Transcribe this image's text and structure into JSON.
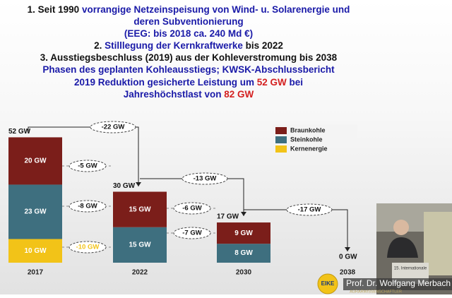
{
  "heading": [
    [
      {
        "text": "1. Seit 1990 ",
        "color": "#111111"
      },
      {
        "text": "vorrangige Netzeinspeisung von Wind- u. Solarenergie und",
        "color": "#1a1aa8"
      }
    ],
    [
      {
        "text": "deren Subventionierung",
        "color": "#1a1aa8"
      }
    ],
    [
      {
        "text": "(EEG:  bis 2018 ca. 240  Md €)",
        "color": "#1a1aa8"
      }
    ],
    [
      {
        "text": "2. ",
        "color": "#111111"
      },
      {
        "text": "Stilllegung der Kernkraftwerke",
        "color": "#1a1aa8"
      },
      {
        "text": " bis 2022",
        "color": "#111111"
      }
    ],
    [
      {
        "text": "3. Ausstiegsbeschluss (2019) aus der Kohleverstromung bis 2038",
        "color": "#111111"
      }
    ],
    [
      {
        "text": "Phasen des geplanten Kohleausstiegs; KWSK-Abschlussbericht",
        "color": "#1a1aa8"
      }
    ],
    [
      {
        "text": "2019  Reduktion gesicherte Leistung um ",
        "color": "#1a1aa8"
      },
      {
        "text": "52 GW",
        "color": "#d42020"
      },
      {
        "text": " bei",
        "color": "#1a1aa8"
      }
    ],
    [
      {
        "text": "Jahreshöchstlast von ",
        "color": "#1a1aa8"
      },
      {
        "text": "82 GW",
        "color": "#d42020"
      }
    ]
  ],
  "chart_data": {
    "type": "bar",
    "stacked": true,
    "categories": [
      "2017",
      "2022",
      "2030",
      "2038"
    ],
    "series": [
      {
        "name": "Braunkohle",
        "color": "#7b1e1a",
        "values": [
          20,
          15,
          9,
          null
        ],
        "value_labels": [
          "20 GW",
          "15 GW",
          "9 GW",
          null
        ]
      },
      {
        "name": "Steinkohle",
        "color": "#3e6f7f",
        "values": [
          23,
          15,
          8,
          null
        ],
        "value_labels": [
          "23 GW",
          "15 GW",
          "8 GW",
          null
        ]
      },
      {
        "name": "Kernenergie",
        "color": "#f2c318",
        "values": [
          10,
          null,
          null,
          null
        ],
        "value_labels": [
          "10 GW",
          null,
          null,
          null
        ]
      }
    ],
    "totals": [
      52,
      30,
      17,
      0
    ],
    "total_labels": [
      "52 GW",
      "30 GW",
      "17 GW",
      "0 GW"
    ],
    "changes": [
      {
        "value": -22,
        "label": "-22 GW",
        "color": "#111111"
      },
      {
        "value": -13,
        "label": "-13 GW",
        "color": "#111111"
      },
      {
        "value": -17,
        "label": "-17 GW",
        "color": "#111111"
      },
      {
        "value": -5,
        "label": "-5 GW",
        "color": "#111111"
      },
      {
        "value": -8,
        "label": "-8 GW",
        "color": "#111111"
      },
      {
        "value": -10,
        "label": "-10 GW",
        "color": "#f2c318"
      },
      {
        "value": -6,
        "label": "-6 GW",
        "color": "#111111"
      },
      {
        "value": -7,
        "label": "-7 GW",
        "color": "#111111"
      }
    ]
  },
  "overlay": {
    "speaker": "Prof. Dr. Wolfgang Merbach",
    "podium": "15. Internationale",
    "logo": "EIKE",
    "logo_sub": "AGRARWISSENSCHAFTLER"
  }
}
